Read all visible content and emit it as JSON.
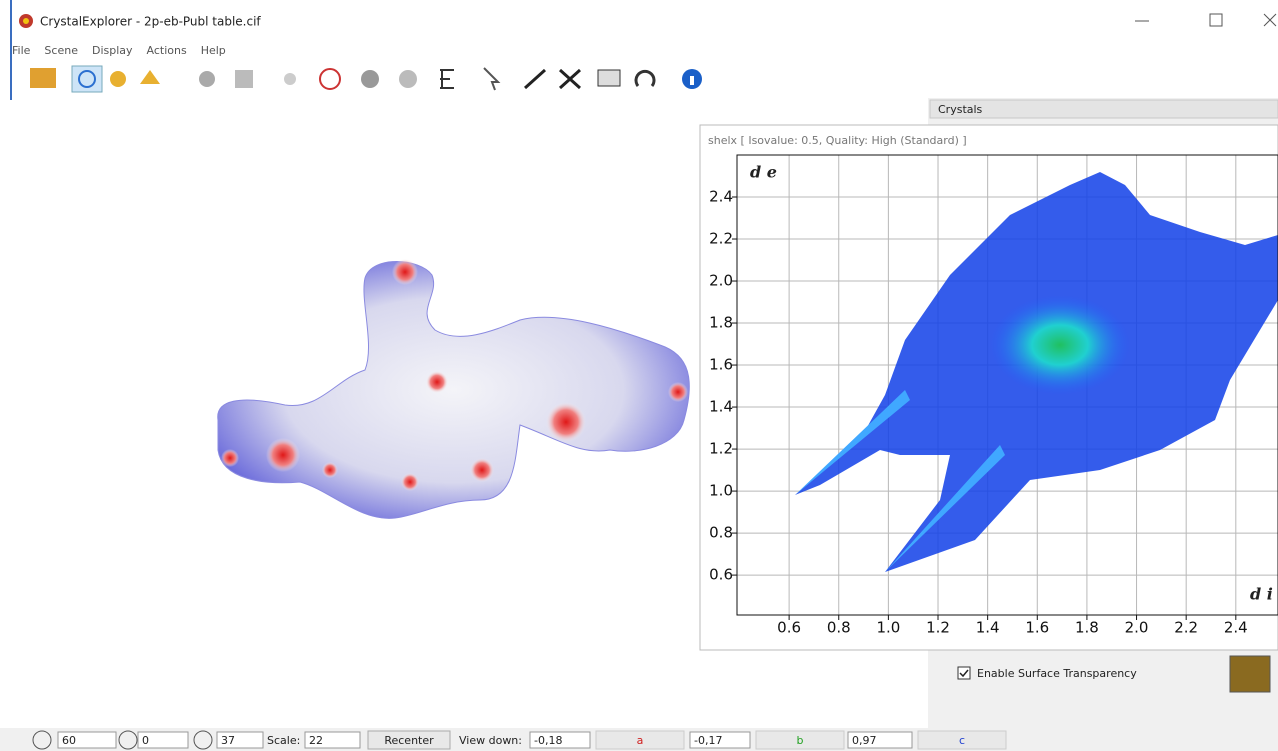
{
  "window": {
    "title": "CrystalExplorer - 2p-eb-Publ table.cif"
  },
  "menu": [
    "File",
    "Scene",
    "Display",
    "Actions",
    "Help"
  ],
  "panel": {
    "title": "Crystals",
    "checkbox": "Enable Surface Transparency"
  },
  "chart_data": {
    "type": "scatter",
    "subtitle": "shelx [ Isovalue: 0.5, Quality: High (Standard) ]",
    "xlabel": "d i",
    "ylabel": "d e",
    "xlim": [
      0.39,
      2.57
    ],
    "ylim": [
      0.41,
      2.6
    ],
    "xticks": [
      0.6,
      0.8,
      {
        "value": 1,
        "label": "1.0"
      },
      1.2,
      1.4,
      1.6,
      1.8,
      {
        "value": 2,
        "label": "2.0"
      },
      2.2,
      2.4
    ],
    "yticks": [
      0.6,
      0.8,
      {
        "value": 1,
        "label": "1.0"
      },
      1.2,
      1.4,
      1.6,
      1.8,
      {
        "value": 2,
        "label": "2.0"
      },
      2.2,
      2.4
    ],
    "grid": true
  },
  "statusbar": {
    "rotate_x": 60,
    "rotate_y": 0,
    "rotate_z": 37,
    "scale_label": "Scale:",
    "scale": 22,
    "recenter": "Recenter",
    "view_down_label": "View down:",
    "a_value": "-0,18",
    "a_label": "a",
    "b_value": "-0,17",
    "b_label": "b",
    "c_value": "0,97",
    "c_label": "c"
  }
}
